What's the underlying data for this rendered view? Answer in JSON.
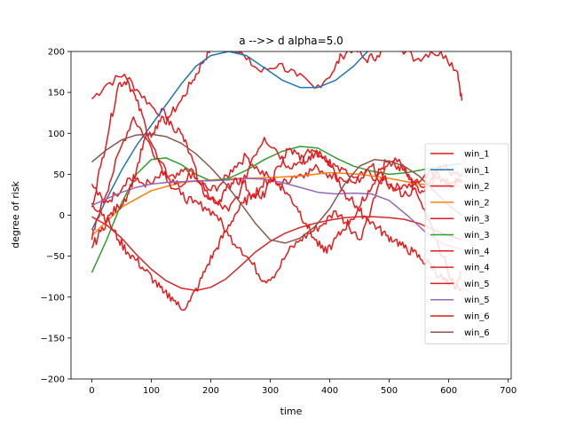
{
  "chart_data": {
    "type": "line",
    "title": "a -->> d  alpha=5.0",
    "xlabel": "time",
    "ylabel": "degree of risk",
    "xlim": [
      -35,
      705
    ],
    "ylim": [
      -200,
      200
    ],
    "xticks": [
      0,
      100,
      200,
      300,
      400,
      500,
      600,
      700
    ],
    "yticks": [
      -200,
      -150,
      -100,
      -50,
      0,
      50,
      100,
      150,
      200
    ],
    "legend_position": "right",
    "grid": false,
    "series": [
      {
        "name": "win_1",
        "color": "#e41a1c",
        "kind": "noisy",
        "x": [
          0,
          25,
          55,
          80,
          105,
          130,
          150,
          170,
          185,
          200,
          215,
          235,
          260,
          285,
          315,
          345,
          375,
          405,
          420,
          440,
          460,
          480,
          500,
          520,
          545,
          570,
          595,
          615,
          622
        ],
        "values": [
          142,
          160,
          172,
          150,
          130,
          120,
          140,
          165,
          185,
          205,
          215,
          210,
          190,
          175,
          185,
          170,
          155,
          175,
          195,
          205,
          190,
          195,
          210,
          205,
          190,
          200,
          195,
          175,
          140
        ]
      },
      {
        "name": "win_1",
        "color": "#1f77b4",
        "kind": "smooth",
        "x": [
          0,
          25,
          50,
          75,
          100,
          125,
          150,
          175,
          200,
          230,
          260,
          290,
          320,
          350,
          380,
          410,
          440,
          470
        ],
        "values": [
          -18,
          20,
          55,
          85,
          110,
          135,
          160,
          182,
          195,
          200,
          195,
          180,
          165,
          156,
          156,
          165,
          182,
          205
        ]
      },
      {
        "name": "win_2",
        "color": "#e41a1c",
        "kind": "noisy",
        "x": [
          0,
          20,
          40,
          60,
          80,
          100,
          120,
          140,
          160,
          180,
          200,
          220,
          240,
          260,
          280,
          300,
          320,
          340,
          360,
          380,
          400,
          420,
          440,
          460,
          480,
          500,
          520,
          540,
          560,
          580,
          600,
          622
        ],
        "values": [
          38,
          15,
          25,
          45,
          40,
          38,
          50,
          45,
          55,
          40,
          30,
          40,
          60,
          72,
          55,
          45,
          38,
          48,
          52,
          58,
          50,
          45,
          40,
          52,
          45,
          38,
          32,
          40,
          35,
          45,
          38,
          40
        ]
      },
      {
        "name": "win_2",
        "color": "#ff7f0e",
        "kind": "smooth",
        "x": [
          0,
          50,
          100,
          150,
          200,
          250,
          300,
          350,
          400,
          450,
          500,
          550,
          600,
          622
        ],
        "values": [
          -25,
          10,
          30,
          40,
          43,
          45,
          46,
          48,
          52,
          50,
          45,
          38,
          36,
          35
        ]
      },
      {
        "name": "win_3",
        "color": "#e41a1c",
        "kind": "noisy",
        "x": [
          0,
          15,
          30,
          50,
          70,
          90,
          110,
          130,
          150,
          170,
          190,
          210,
          230,
          250,
          270,
          290,
          310,
          330,
          350,
          370,
          390,
          410,
          430,
          450,
          470,
          490,
          510,
          530,
          550,
          570,
          590,
          610,
          622
        ],
        "values": [
          -30,
          10,
          40,
          85,
          120,
          95,
          70,
          40,
          25,
          15,
          10,
          0,
          -25,
          -40,
          -60,
          -80,
          -70,
          -45,
          -30,
          -20,
          -10,
          5,
          -10,
          -30,
          10,
          50,
          70,
          50,
          20,
          -10,
          -50,
          -90,
          -70
        ]
      },
      {
        "name": "win_3",
        "color": "#2ca02c",
        "kind": "smooth",
        "x": [
          0,
          25,
          50,
          75,
          100,
          125,
          150,
          175,
          200,
          230,
          260,
          290,
          320,
          350,
          380,
          410,
          440,
          470,
          500,
          530,
          560,
          590,
          622
        ],
        "values": [
          -70,
          -30,
          15,
          50,
          68,
          70,
          62,
          50,
          42,
          45,
          55,
          68,
          78,
          84,
          82,
          70,
          60,
          54,
          50,
          52,
          56,
          60,
          63
        ]
      },
      {
        "name": "win_4",
        "color": "#e41a1c",
        "kind": "noisy",
        "x": [
          0,
          15,
          30,
          45,
          60,
          75,
          90,
          110,
          130,
          150,
          170,
          190,
          210,
          230,
          250,
          270,
          290,
          310,
          330,
          350,
          370,
          390,
          410,
          430,
          450,
          470,
          490,
          510,
          530,
          550,
          570,
          590,
          610,
          622
        ],
        "values": [
          10,
          60,
          110,
          160,
          165,
          140,
          110,
          70,
          45,
          35,
          55,
          30,
          15,
          5,
          30,
          70,
          95,
          80,
          60,
          65,
          80,
          70,
          60,
          50,
          40,
          60,
          45,
          30,
          25,
          40,
          55,
          45,
          40,
          42
        ]
      },
      {
        "name": "win_4",
        "color": "#d62728",
        "kind": "smooth",
        "x": [
          0,
          25,
          50,
          75,
          100,
          125,
          150,
          175,
          200,
          225,
          250,
          275,
          300,
          325,
          350,
          375,
          400,
          425,
          450,
          475,
          500,
          525,
          550,
          575,
          600,
          622
        ],
        "values": [
          -2,
          -12,
          -28,
          -48,
          -66,
          -80,
          -89,
          -92,
          -88,
          -78,
          -62,
          -45,
          -32,
          -22,
          -15,
          -10,
          -6,
          -3,
          -2,
          -2,
          -3,
          -5,
          -10,
          -18,
          -25,
          -30
        ]
      },
      {
        "name": "win_5",
        "color": "#e41a1c",
        "kind": "noisy",
        "x": [
          0,
          15,
          30,
          45,
          60,
          75,
          90,
          105,
          120,
          135,
          150,
          165,
          180,
          195,
          210,
          225,
          240,
          255,
          270,
          285,
          300,
          315,
          330,
          345,
          360,
          375,
          390,
          405,
          420,
          435,
          450,
          465,
          480,
          495,
          510,
          525,
          540,
          555,
          570,
          585,
          600,
          622
        ],
        "values": [
          15,
          5,
          -10,
          -30,
          -45,
          -55,
          -68,
          -80,
          -95,
          -100,
          -115,
          -105,
          -85,
          -60,
          -40,
          -20,
          0,
          15,
          25,
          35,
          45,
          38,
          25,
          10,
          -10,
          -30,
          -45,
          -35,
          -20,
          -5,
          5,
          -5,
          -15,
          -25,
          -30,
          -40,
          -45,
          -55,
          -60,
          -75,
          -85,
          -90
        ]
      },
      {
        "name": "win_5",
        "color": "#9467bd",
        "kind": "smooth",
        "x": [
          0,
          25,
          50,
          75,
          100,
          125,
          150,
          175,
          200,
          230,
          260,
          290,
          320,
          350,
          380,
          410,
          440,
          470,
          500,
          530,
          560,
          590,
          622
        ],
        "values": [
          12,
          20,
          28,
          34,
          38,
          40,
          41,
          42,
          42,
          43,
          45,
          44,
          40,
          34,
          28,
          26,
          27,
          26,
          18,
          0,
          -20,
          -35,
          -42
        ]
      },
      {
        "name": "win_6",
        "color": "#e41a1c",
        "kind": "noisy",
        "x": [
          0,
          15,
          30,
          45,
          60,
          75,
          90,
          105,
          120,
          135,
          150,
          165,
          180,
          195,
          210,
          225,
          240,
          255,
          270,
          285,
          300,
          315,
          330,
          345,
          360,
          375,
          390,
          405,
          420,
          435,
          450,
          465,
          480,
          495,
          510,
          525,
          540,
          555,
          570,
          585,
          600,
          622
        ],
        "values": [
          -40,
          -20,
          0,
          10,
          25,
          55,
          95,
          100,
          120,
          110,
          100,
          75,
          40,
          20,
          15,
          30,
          45,
          40,
          25,
          20,
          40,
          60,
          80,
          75,
          65,
          75,
          70,
          60,
          30,
          20,
          10,
          30,
          50,
          65,
          60,
          55,
          40,
          30,
          45,
          60,
          55,
          50
        ]
      },
      {
        "name": "win_6",
        "color": "#8c564b",
        "kind": "smooth",
        "x": [
          0,
          25,
          50,
          75,
          100,
          125,
          150,
          175,
          200,
          225,
          250,
          275,
          300,
          325,
          350,
          375,
          400,
          425,
          450,
          475,
          500,
          525,
          550,
          575,
          600,
          622
        ],
        "values": [
          65,
          80,
          92,
          98,
          99,
          96,
          88,
          75,
          58,
          38,
          15,
          -10,
          -30,
          -34,
          -28,
          -14,
          8,
          38,
          60,
          68,
          66,
          60,
          48,
          30,
          12,
          0
        ]
      }
    ]
  }
}
